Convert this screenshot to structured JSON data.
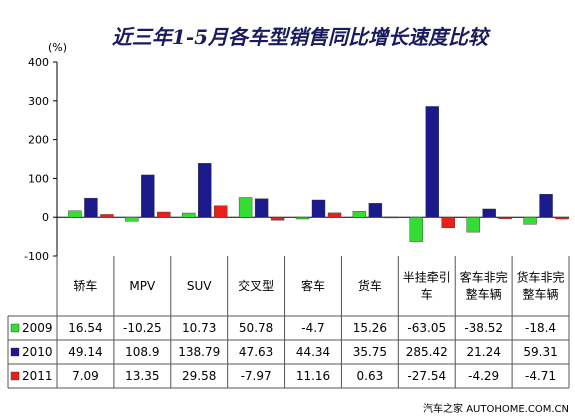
{
  "chart_data": {
    "type": "bar",
    "title": "近三年1-5月各车型销售同比增长速度比较",
    "unit_label": "(%)",
    "ylim": [
      -100,
      400
    ],
    "yticks": [
      "400",
      "300",
      "200",
      "100",
      "0",
      "-100"
    ],
    "grid": false,
    "legend": "table-left",
    "categories": [
      [
        "轿车"
      ],
      [
        "MPV"
      ],
      [
        "SUV"
      ],
      [
        "交叉型"
      ],
      [
        "客车"
      ],
      [
        "货车"
      ],
      [
        "半挂牵引",
        "车"
      ],
      [
        "客车非完",
        "整车辆"
      ],
      [
        "货车非完",
        "整车辆"
      ]
    ],
    "series": [
      {
        "name": "2009",
        "color": "#33dd33",
        "values": [
          16.54,
          -10.25,
          10.73,
          50.78,
          -4.7,
          15.26,
          -63.05,
          -38.52,
          -18.4
        ],
        "labels": [
          "16.54",
          "-10.25",
          "10.73",
          "50.78",
          "-4.7",
          "15.26",
          "-63.05",
          "-38.52",
          "-18.4"
        ]
      },
      {
        "name": "2010",
        "color": "#1a1a8c",
        "values": [
          49.14,
          108.9,
          138.79,
          47.63,
          44.34,
          35.75,
          285.42,
          21.24,
          59.31
        ],
        "labels": [
          "49.14",
          "108.9",
          "138.79",
          "47.63",
          "44.34",
          "35.75",
          "285.42",
          "21.24",
          "59.31"
        ]
      },
      {
        "name": "2011",
        "color": "#e8201c",
        "values": [
          7.09,
          13.35,
          29.58,
          -7.97,
          11.16,
          0.63,
          -27.54,
          -4.29,
          -4.71
        ],
        "labels": [
          "7.09",
          "13.35",
          "29.58",
          "-7.97",
          "11.16",
          "0.63",
          "-27.54",
          "-4.29",
          "-4.71"
        ]
      }
    ]
  },
  "watermark": "汽车之家 AUTOHOME.COM.CN"
}
